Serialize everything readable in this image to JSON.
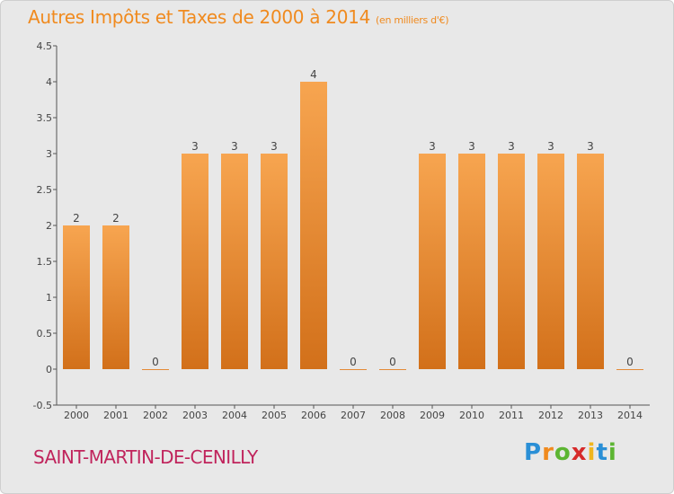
{
  "header": {
    "title": "Autres Impôts et Taxes de 2000 à 2014",
    "unit": "(en milliers d'€)"
  },
  "footer": {
    "commune": "SAINT-MARTIN-DE-CENILLY"
  },
  "logo": {
    "letters": [
      "P",
      "r",
      "o",
      "x",
      "i",
      "t",
      "i"
    ],
    "colors": [
      "#2a8fd6",
      "#f08a1e",
      "#5cb532",
      "#d62a2a",
      "#f0b61e",
      "#2a8fd6",
      "#5cb532"
    ]
  },
  "chart_data": {
    "type": "bar",
    "title": "Autres Impôts et Taxes de 2000 à 2014",
    "categories": [
      "2000",
      "2001",
      "2002",
      "2003",
      "2004",
      "2005",
      "2006",
      "2007",
      "2008",
      "2009",
      "2010",
      "2011",
      "2012",
      "2013",
      "2014"
    ],
    "values": [
      2,
      2,
      0,
      3,
      3,
      3,
      4,
      0,
      0,
      3,
      3,
      3,
      3,
      3,
      0
    ],
    "labels": [
      "2",
      "2",
      "0",
      "3",
      "3",
      "3",
      "4",
      "0",
      "0",
      "3",
      "3",
      "3",
      "3",
      "3",
      "0"
    ],
    "yticks": [
      -0.5,
      0,
      0.5,
      1,
      1.5,
      2,
      2.5,
      3,
      3.5,
      4,
      4.5
    ],
    "ytick_labels": [
      "-0.5",
      "0",
      "0.5",
      "1",
      "1.5",
      "2",
      "2.5",
      "3",
      "3.5",
      "4",
      "4.5"
    ],
    "ylim": [
      -0.5,
      4.5
    ],
    "grid": false,
    "bar_color_top": "#f7a550",
    "bar_color_bottom": "#d2701a"
  }
}
